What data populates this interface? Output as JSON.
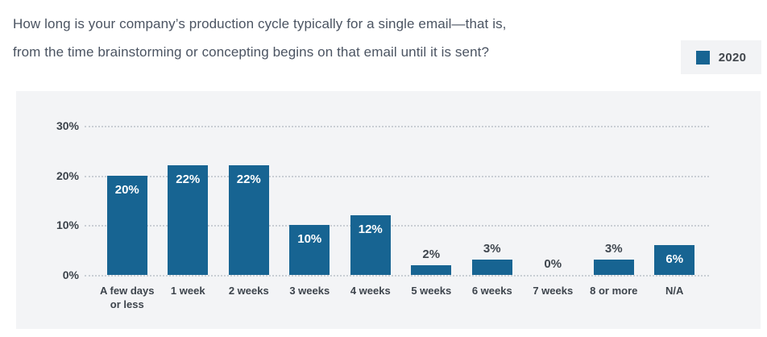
{
  "header": {
    "title_line1": "How long is your company’s production cycle typically for a single email—that is,",
    "title_line2": "from the time brainstorming or concepting begins on that email until it is sent?",
    "legend": {
      "label": "2020",
      "swatch_color": "#176492"
    }
  },
  "chart_data": {
    "type": "bar",
    "title": "How long is your company’s production cycle typically for a single email—that is, from the time brainstorming or concepting begins on that email until it is sent?",
    "series_name": "2020",
    "categories": [
      "A few days or less",
      "1 week",
      "2 weeks",
      "3 weeks",
      "4 weeks",
      "5 weeks",
      "6 weeks",
      "7 weeks",
      "8 or more",
      "N/A"
    ],
    "values": [
      20,
      22,
      22,
      10,
      12,
      2,
      3,
      0,
      3,
      6
    ],
    "value_labels": [
      "20%",
      "22%",
      "22%",
      "10%",
      "12%",
      "2%",
      "3%",
      "0%",
      "3%",
      "6%"
    ],
    "xlabel": "",
    "ylabel": "",
    "ylim": [
      0,
      30
    ],
    "yticks": [
      30,
      20,
      10,
      0
    ],
    "ytick_labels": [
      "30%",
      "20%",
      "10%",
      "0%"
    ],
    "grid": "dotted-horizontal",
    "legend_position": "top-right",
    "bar_color": "#176492",
    "panel_background": "#f3f4f6",
    "label_inside_threshold": 6
  }
}
